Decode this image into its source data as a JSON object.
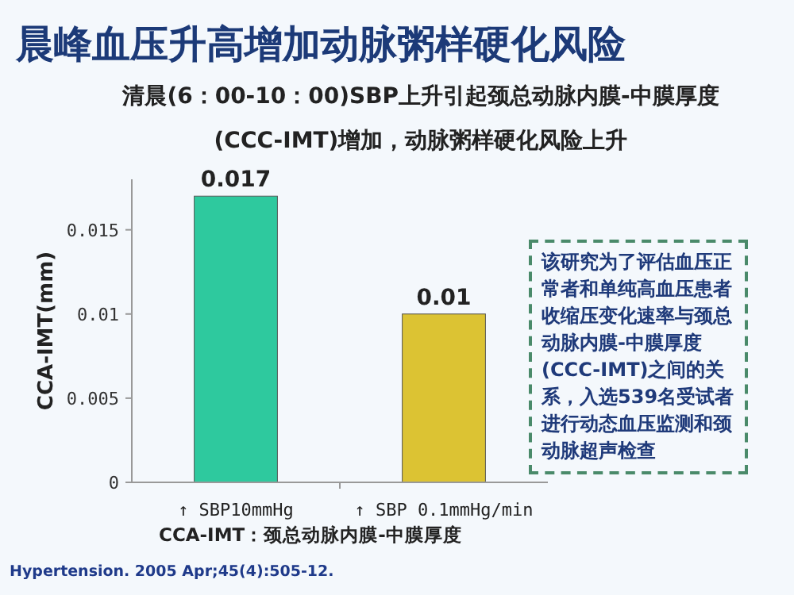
{
  "chart_data": {
    "type": "bar",
    "title": "晨峰血压升高增加动脉粥样硬化风险",
    "subtitle": "清晨(6：00-10：00)SBP上升引起颈总动脉内膜-中膜厚度(CCC-IMT)增加，动脉粥样硬化风险上升",
    "ylabel": "CCA-IMT(mm)",
    "categories": [
      "↑ SBP10mmHg",
      "↑ SBP 0.1mmHg/min"
    ],
    "values": [
      0.017,
      0.01
    ],
    "colors": [
      "#2ec99e",
      "#dcc333"
    ],
    "data_labels": true,
    "ylim": [
      0,
      0.018
    ],
    "yticks": [
      0,
      0.005,
      0.01,
      0.015
    ],
    "grid": false,
    "annotations": [
      "该研究为了评估血压正常者和单纯高血压患者收缩压变化速率与颈总动脉内膜-中膜厚度(CCC-IMT)之间的关系，入选539名受试者进行动态血压监测和颈动脉超声检查",
      "CCA-IMT：颈总动脉内膜-中膜厚度",
      "Hypertension. 2005 Apr;45(4):505-12."
    ]
  }
}
